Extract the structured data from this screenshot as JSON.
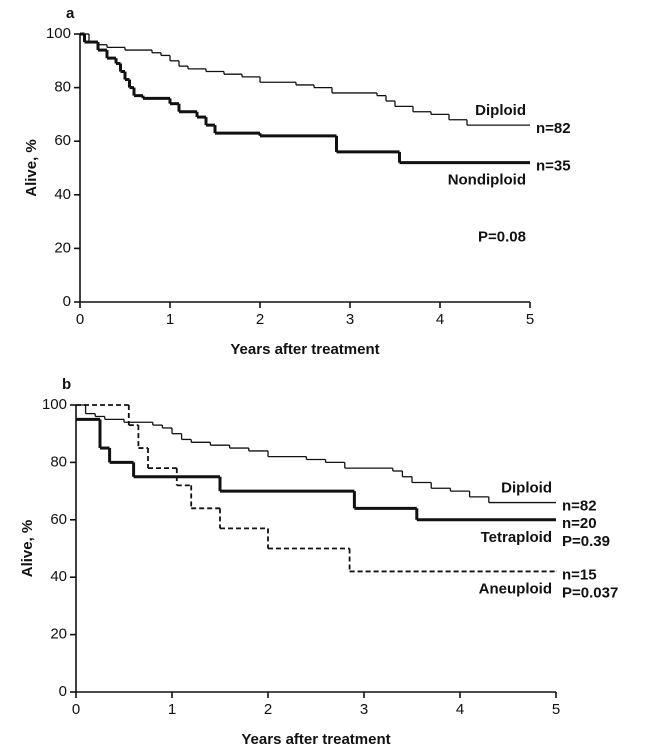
{
  "chart_data": [
    {
      "type": "step",
      "panel": "a",
      "xlabel": "Years after treatment",
      "ylabel": "Alive, %",
      "xlim": [
        0,
        5
      ],
      "ylim": [
        0,
        100
      ],
      "xticks": [
        0,
        1,
        2,
        3,
        4,
        5
      ],
      "yticks": [
        0,
        20,
        40,
        60,
        80,
        100
      ],
      "annotation": "P=0.08",
      "series": [
        {
          "name": "Diploid",
          "n": "n=82",
          "color": "#111111",
          "width": 1.3,
          "dashed": false,
          "label_side": "above",
          "x": [
            0,
            0.1,
            0.2,
            0.3,
            0.5,
            0.8,
            0.9,
            1.0,
            1.1,
            1.2,
            1.4,
            1.6,
            1.8,
            2.0,
            2.4,
            2.6,
            2.8,
            3.3,
            3.4,
            3.5,
            3.7,
            3.9,
            4.1,
            4.3,
            5
          ],
          "values": [
            100,
            97,
            96,
            95,
            94,
            93,
            92,
            90,
            88,
            87,
            86,
            85,
            84,
            82,
            81,
            80,
            78,
            77,
            75,
            73,
            71,
            70,
            68,
            66,
            66
          ]
        },
        {
          "name": "Nondiploid",
          "n": "n=35",
          "color": "#111111",
          "width": 3,
          "dashed": false,
          "label_side": "below",
          "x": [
            0,
            0.05,
            0.2,
            0.3,
            0.4,
            0.45,
            0.5,
            0.55,
            0.6,
            0.7,
            1.0,
            1.1,
            1.3,
            1.4,
            1.5,
            2.0,
            2.85,
            3.55,
            5
          ],
          "values": [
            100,
            97,
            94,
            91,
            89,
            86,
            83,
            80,
            77,
            76,
            74,
            71,
            69,
            66,
            63,
            62,
            56,
            52,
            52
          ]
        }
      ]
    },
    {
      "type": "step",
      "panel": "b",
      "xlabel": "Years after treatment",
      "ylabel": "Alive, %",
      "xlim": [
        0,
        5
      ],
      "ylim": [
        0,
        100
      ],
      "xticks": [
        0,
        1,
        2,
        3,
        4,
        5
      ],
      "yticks": [
        0,
        20,
        40,
        60,
        80,
        100
      ],
      "series": [
        {
          "name": "Diploid",
          "n": "n=82",
          "color": "#111111",
          "width": 1.3,
          "dashed": false,
          "label_side": "above",
          "x": [
            0,
            0.1,
            0.2,
            0.3,
            0.5,
            0.8,
            0.9,
            1.0,
            1.1,
            1.2,
            1.4,
            1.6,
            1.8,
            2.0,
            2.4,
            2.6,
            2.8,
            3.3,
            3.4,
            3.5,
            3.7,
            3.9,
            4.1,
            4.3,
            5
          ],
          "values": [
            100,
            97,
            96,
            95,
            94,
            93,
            92,
            90,
            88,
            87,
            86,
            85,
            84,
            82,
            81,
            80,
            78,
            77,
            75,
            73,
            71,
            70,
            68,
            66,
            66
          ]
        },
        {
          "name": "Tetraploid",
          "n": "n=20",
          "p": "P=0.39",
          "color": "#111111",
          "width": 3,
          "dashed": false,
          "label_side": "below",
          "x": [
            0,
            0.25,
            0.35,
            0.6,
            1.5,
            2.9,
            3.55,
            5
          ],
          "values": [
            95,
            85,
            80,
            75,
            70,
            64,
            60,
            60
          ]
        },
        {
          "name": "Aneuploid",
          "n": "n=15",
          "p": "P=0.037",
          "color": "#111111",
          "width": 1.8,
          "dashed": true,
          "label_side": "below",
          "x": [
            0,
            0.55,
            0.65,
            0.75,
            1.05,
            1.2,
            1.5,
            2.0,
            2.85,
            5
          ],
          "values": [
            100,
            93,
            85,
            78,
            72,
            64,
            57,
            50,
            42,
            42
          ]
        }
      ]
    }
  ]
}
